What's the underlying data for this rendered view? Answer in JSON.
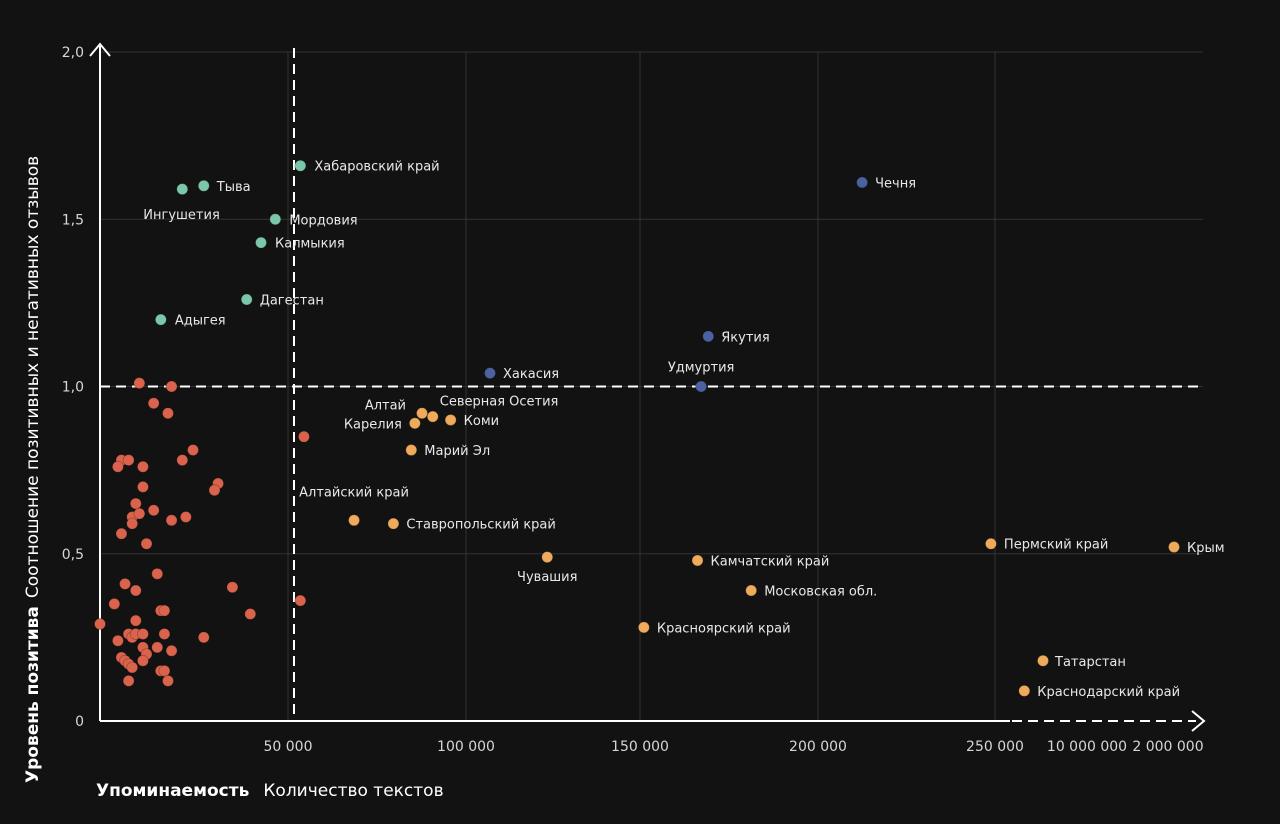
{
  "chart_data": {
    "type": "scatter",
    "xlabel_bold": "Упоминаемость",
    "xlabel": "Количество текстов",
    "ylabel_bold": "Уровень позитива",
    "ylabel": "Соотношение позитивных и негативных отзывов",
    "ylim": [
      0,
      2.0
    ],
    "yticks": [
      "0",
      "0,5",
      "1,0",
      "1,5",
      "2,0"
    ],
    "yticks_values": [
      0,
      0.5,
      1.0,
      1.5,
      2.0
    ],
    "xticks": [
      "50 000",
      "100 000",
      "150 000",
      "200 000",
      "250 000",
      "10 000 000",
      "2 000 000"
    ],
    "xticks_values": [
      50000,
      100000,
      150000,
      200000,
      250000,
      10000000,
      2000000
    ],
    "colors": {
      "teal": "#7cc6a9",
      "blue": "#4a63a0",
      "orange": "#efaa5c",
      "red": "#d9634c",
      "background": "#121212",
      "grid": "#333333",
      "axis": "#ffffff"
    },
    "series": [
      {
        "color": "teal",
        "points": [
          {
            "label": "Хабаровский край",
            "x": 56000,
            "y": 1.66
          },
          {
            "label": "Тыва",
            "x": 29000,
            "y": 1.6
          },
          {
            "label": "Ингушетия",
            "x": 23000,
            "y": 1.59
          },
          {
            "label": "Мордовия",
            "x": 49000,
            "y": 1.5
          },
          {
            "label": "Калмыкия",
            "x": 45000,
            "y": 1.43
          },
          {
            "label": "Дагестан",
            "x": 41000,
            "y": 1.26
          },
          {
            "label": "Адыгея",
            "x": 17000,
            "y": 1.2
          }
        ]
      },
      {
        "color": "blue",
        "points": [
          {
            "label": "Чечня",
            "x": 213000,
            "y": 1.61
          },
          {
            "label": "Якутия",
            "x": 170000,
            "y": 1.15
          },
          {
            "label": "Хакасия",
            "x": 109000,
            "y": 1.04
          },
          {
            "label": "Удмуртия",
            "x": 168000,
            "y": 1.0
          }
        ]
      },
      {
        "color": "orange",
        "points": [
          {
            "label": "Алтай",
            "x": 90000,
            "y": 0.92
          },
          {
            "label": "Северная Осетия",
            "x": 93000,
            "y": 0.91
          },
          {
            "label": "Коми",
            "x": 98000,
            "y": 0.9
          },
          {
            "label": "Карелия",
            "x": 88000,
            "y": 0.89
          },
          {
            "label": "Марий Эл",
            "x": 87000,
            "y": 0.81
          },
          {
            "label": "Алтайский край",
            "x": 71000,
            "y": 0.6
          },
          {
            "label": "Ставропольский край",
            "x": 82000,
            "y": 0.59
          },
          {
            "label": "Чувашия",
            "x": 125000,
            "y": 0.49
          },
          {
            "label": "Камчатский край",
            "x": 167000,
            "y": 0.48
          },
          {
            "label": "Московская обл.",
            "x": 182000,
            "y": 0.39
          },
          {
            "label": "Красноярский край",
            "x": 152000,
            "y": 0.28
          },
          {
            "label": "Пермский край",
            "x": 249000,
            "y": 0.53
          },
          {
            "label": "Крым",
            "x": 2000000,
            "y": 0.52
          },
          {
            "label": "Татарстан",
            "x": 8500000,
            "y": 0.18
          },
          {
            "label": "Краснодарский край",
            "x": 4000000,
            "y": 0.09
          }
        ]
      },
      {
        "color": "red",
        "points": [
          {
            "x": 11000,
            "y": 1.01
          },
          {
            "x": 20000,
            "y": 1.0
          },
          {
            "x": 15000,
            "y": 0.95
          },
          {
            "x": 19000,
            "y": 0.92
          },
          {
            "x": 57000,
            "y": 0.85
          },
          {
            "x": 26000,
            "y": 0.81
          },
          {
            "x": 6000,
            "y": 0.78
          },
          {
            "x": 8000,
            "y": 0.78
          },
          {
            "x": 5000,
            "y": 0.76
          },
          {
            "x": 12000,
            "y": 0.76
          },
          {
            "x": 23000,
            "y": 0.78
          },
          {
            "x": 33000,
            "y": 0.71
          },
          {
            "x": 32000,
            "y": 0.69
          },
          {
            "x": 12000,
            "y": 0.7
          },
          {
            "x": 10000,
            "y": 0.65
          },
          {
            "x": 9000,
            "y": 0.61
          },
          {
            "x": 11000,
            "y": 0.62
          },
          {
            "x": 15000,
            "y": 0.63
          },
          {
            "x": 9000,
            "y": 0.59
          },
          {
            "x": 20000,
            "y": 0.6
          },
          {
            "x": 24000,
            "y": 0.61
          },
          {
            "x": 6000,
            "y": 0.56
          },
          {
            "x": 13000,
            "y": 0.53
          },
          {
            "x": 16000,
            "y": 0.44
          },
          {
            "x": 7000,
            "y": 0.41
          },
          {
            "x": 10000,
            "y": 0.39
          },
          {
            "x": 37000,
            "y": 0.4
          },
          {
            "x": 4000,
            "y": 0.35
          },
          {
            "x": 56000,
            "y": 0.36
          },
          {
            "x": 17000,
            "y": 0.33
          },
          {
            "x": 18000,
            "y": 0.33
          },
          {
            "x": 42000,
            "y": 0.32
          },
          {
            "x": 0,
            "y": 0.29
          },
          {
            "x": 10000,
            "y": 0.3
          },
          {
            "x": 5000,
            "y": 0.24
          },
          {
            "x": 8000,
            "y": 0.26
          },
          {
            "x": 9000,
            "y": 0.25
          },
          {
            "x": 10000,
            "y": 0.26
          },
          {
            "x": 12000,
            "y": 0.26
          },
          {
            "x": 18000,
            "y": 0.26
          },
          {
            "x": 29000,
            "y": 0.25
          },
          {
            "x": 12000,
            "y": 0.22
          },
          {
            "x": 16000,
            "y": 0.22
          },
          {
            "x": 20000,
            "y": 0.21
          },
          {
            "x": 13000,
            "y": 0.2
          },
          {
            "x": 6000,
            "y": 0.19
          },
          {
            "x": 7000,
            "y": 0.18
          },
          {
            "x": 12000,
            "y": 0.18
          },
          {
            "x": 8000,
            "y": 0.17
          },
          {
            "x": 9000,
            "y": 0.16
          },
          {
            "x": 17000,
            "y": 0.15
          },
          {
            "x": 18000,
            "y": 0.15
          },
          {
            "x": 8000,
            "y": 0.12
          },
          {
            "x": 19000,
            "y": 0.12
          }
        ]
      }
    ]
  }
}
